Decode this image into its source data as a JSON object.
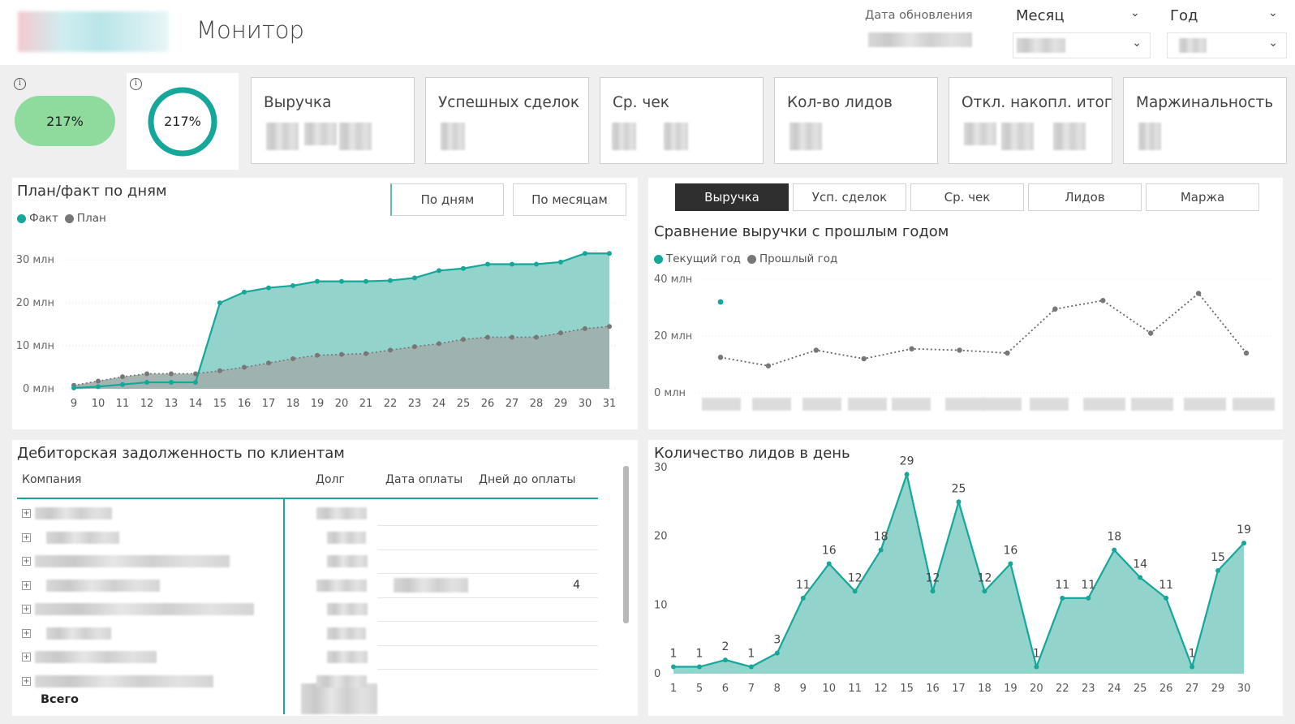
{
  "header": {
    "title": "Монитор",
    "update_label": "Дата обновления",
    "month_slicer": "Месяц",
    "year_slicer": "Год"
  },
  "kpi": {
    "pill_value": "217%",
    "ring_value": "217%",
    "ring_fraction": 1.0,
    "cards": [
      "Выручка",
      "Успешных сделок",
      "Ср. чек",
      "Кол-во лидов",
      "Откл. накопл. итог",
      "Маржинальность"
    ]
  },
  "plan_fact": {
    "title": "План/факт по дням",
    "btn_days": "По дням",
    "btn_months": "По месяцам",
    "legend": [
      {
        "name": "Факт",
        "color": "#14a79a"
      },
      {
        "name": "План",
        "color": "#777777"
      }
    ]
  },
  "comparison": {
    "tabs": [
      "Выручка",
      "Усп. сделок",
      "Ср. чек",
      "Лидов",
      "Маржа"
    ],
    "active_tab": 0,
    "title": "Сравнение выручки с прошлым годом",
    "legend": [
      {
        "name": "Текущий год",
        "color": "#14a79a"
      },
      {
        "name": "Прошлый год",
        "color": "#777777"
      }
    ]
  },
  "debt": {
    "title": "Дебиторская задолженность по клиентам",
    "columns": [
      "Компания",
      "Долг",
      "Дата оплаты",
      "Дней до оплаты"
    ],
    "row_days": [
      "",
      "",
      "",
      "4",
      "",
      "",
      "",
      ""
    ],
    "total_label": "Всего"
  },
  "leads": {
    "title": "Количество лидов в день"
  },
  "chart_data": [
    {
      "type": "area",
      "title": "План/факт по дням",
      "categories": [
        "9",
        "10",
        "11",
        "12",
        "13",
        "14",
        "15",
        "16",
        "17",
        "18",
        "19",
        "20",
        "21",
        "22",
        "23",
        "24",
        "25",
        "26",
        "27",
        "28",
        "29",
        "30",
        "31"
      ],
      "series": [
        {
          "name": "Факт",
          "color": "#14a79a",
          "values": [
            0.2,
            0.5,
            1,
            1.5,
            1.5,
            1.5,
            20,
            22.5,
            23.5,
            24,
            25,
            25,
            25,
            25.2,
            25.8,
            27.5,
            28,
            29,
            29,
            29,
            29.5,
            31.5,
            31.5
          ]
        },
        {
          "name": "План",
          "color": "#777777",
          "values": [
            0.8,
            1.8,
            2.8,
            3.5,
            3.5,
            3.5,
            4.2,
            5,
            6,
            7,
            7.8,
            8,
            8.2,
            9,
            9.8,
            10.5,
            11.5,
            12,
            12,
            12,
            13,
            14,
            14.5
          ]
        }
      ],
      "yticks": [
        "0 млн",
        "10 млн",
        "20 млн",
        "30 млн"
      ],
      "ylim": [
        0,
        34
      ]
    },
    {
      "type": "line",
      "title": "Сравнение выручки с прошлым годом",
      "series": [
        {
          "name": "Текущий год",
          "color": "#14a79a",
          "values": [
            32
          ]
        },
        {
          "name": "Прошлый год",
          "color": "#777777",
          "values": [
            12.5,
            9.5,
            15,
            12,
            15.5,
            15,
            14,
            29.5,
            32.5,
            21,
            35,
            14
          ]
        }
      ],
      "yticks": [
        "0 млн",
        "20 млн",
        "40 млн"
      ],
      "ylim": [
        0,
        40
      ]
    },
    {
      "type": "area",
      "title": "Количество лидов в день",
      "categories": [
        "1",
        "5",
        "6",
        "7",
        "8",
        "9",
        "10",
        "11",
        "12",
        "15",
        "16",
        "17",
        "18",
        "19",
        "20",
        "22",
        "23",
        "24",
        "25",
        "26",
        "27",
        "29",
        "30"
      ],
      "series": [
        {
          "name": "",
          "color": "#14a79a",
          "values": [
            1,
            1,
            2,
            1,
            3,
            11,
            16,
            12,
            18,
            29,
            12,
            25,
            12,
            16,
            1,
            11,
            11,
            18,
            14,
            11,
            1,
            15,
            19
          ]
        }
      ],
      "yticks": [
        "0",
        "10",
        "20",
        "30"
      ],
      "ylim": [
        0,
        30
      ]
    }
  ]
}
